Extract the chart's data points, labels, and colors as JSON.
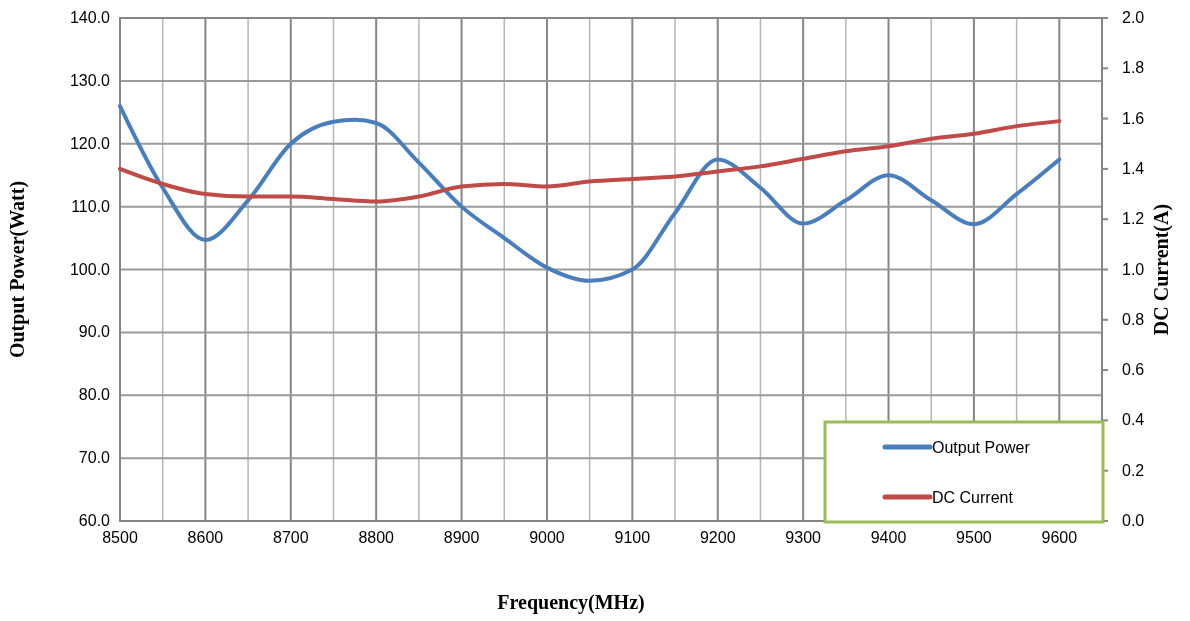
{
  "chart_data": {
    "type": "line",
    "xlabel": "Frequency(MHz)",
    "ylabel": "Output Power(Watt)",
    "y2label": "DC Current(A)",
    "xlim": [
      8500,
      9650
    ],
    "xticks": [
      8500,
      {
        "value": 8550,
        "label": null
      },
      8600,
      {
        "value": 8650,
        "label": null
      },
      8700,
      {
        "value": 8750,
        "label": null
      },
      8800,
      {
        "value": 8850,
        "label": null
      },
      8900,
      {
        "value": 8950,
        "label": null
      },
      9000,
      {
        "value": 9050,
        "label": null
      },
      9100,
      {
        "value": 9150,
        "label": null
      },
      9200,
      {
        "value": 9250,
        "label": null
      },
      9300,
      {
        "value": 9350,
        "label": null
      },
      9400,
      {
        "value": 9450,
        "label": null
      },
      9500,
      {
        "value": 9550,
        "label": null
      },
      9600,
      {
        "value": 9650,
        "label": null
      }
    ],
    "ylim": [
      60,
      140
    ],
    "yticks": [
      {
        "value": 60,
        "label": "60.0"
      },
      {
        "value": 70,
        "label": "70.0"
      },
      {
        "value": 80,
        "label": "80.0"
      },
      {
        "value": 90,
        "label": "90.0"
      },
      {
        "value": 100,
        "label": "100.0"
      },
      {
        "value": 110,
        "label": "110.0"
      },
      {
        "value": 120,
        "label": "120.0"
      },
      {
        "value": 130,
        "label": "130.0"
      },
      {
        "value": 140,
        "label": "140.0"
      }
    ],
    "y2lim": [
      0,
      2
    ],
    "y2ticks": [
      {
        "value": 0,
        "label": "0.0"
      },
      0.2,
      0.4,
      0.6,
      0.8,
      {
        "value": 1,
        "label": "1.0"
      },
      1.2,
      1.4,
      1.6,
      1.8,
      {
        "value": 2,
        "label": "2.0"
      }
    ],
    "grid": true,
    "legend": "bottom right",
    "line_style": "solid",
    "marker": "none",
    "series": [
      {
        "name": "Output Power",
        "color": "#4a7ebb",
        "x": [
          8500,
          8550,
          8600,
          8650,
          8700,
          8750,
          8775,
          8800,
          8850,
          8900,
          8950,
          9000,
          9050,
          9100,
          9150,
          9200,
          9250,
          9300,
          9350,
          9400,
          9450,
          9500,
          9550,
          9600
        ],
        "values": [
          126,
          113,
          104.7,
          111,
          120,
          123.5,
          123.8,
          123.3,
          117,
          110,
          105,
          100.3,
          98.2,
          100,
          109,
          117.5,
          113,
          107.3,
          111,
          115,
          111,
          107.2,
          112,
          117.5
        ]
      },
      {
        "name": "DC Current",
        "color": "#be4b48",
        "axis": "y2",
        "x": [
          8500,
          8550,
          8600,
          8650,
          8700,
          8750,
          8800,
          8850,
          8900,
          8950,
          9000,
          9050,
          9100,
          9150,
          9200,
          9250,
          9300,
          9350,
          9400,
          9450,
          9500,
          9550,
          9600
        ],
        "values": [
          1.4,
          1.34,
          1.3,
          1.29,
          1.29,
          1.28,
          1.27,
          1.29,
          1.33,
          1.34,
          1.33,
          1.35,
          1.36,
          1.37,
          1.39,
          1.41,
          1.44,
          1.47,
          1.49,
          1.52,
          1.54,
          1.57,
          1.59
        ]
      }
    ]
  }
}
